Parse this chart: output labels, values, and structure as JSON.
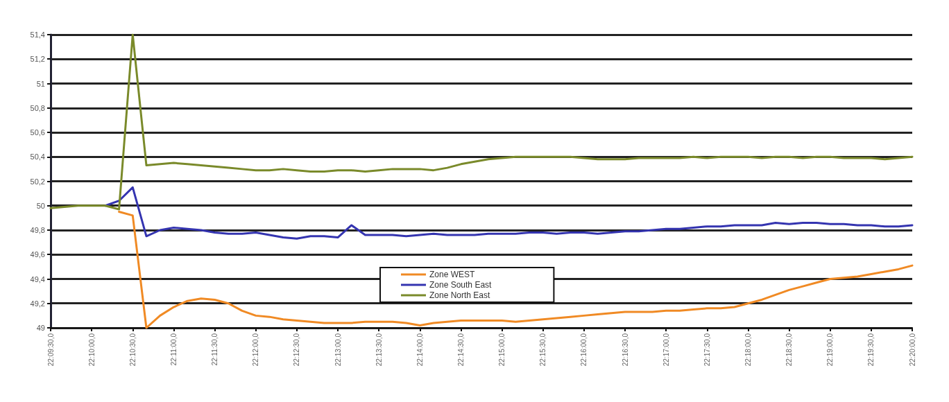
{
  "chart_data": {
    "type": "line",
    "categories": [
      "22:09:30,0",
      null,
      null,
      "22:10:00,0",
      null,
      null,
      "22:10:30,0",
      null,
      null,
      "22:11:00,0",
      null,
      null,
      "22:11:30,0",
      null,
      null,
      "22:12:00,0",
      null,
      null,
      "22:12:30,0",
      null,
      null,
      "22:13:00,0",
      null,
      null,
      "22:13:30,0",
      null,
      null,
      "22:14:00,0",
      null,
      null,
      "22:14:30,0",
      null,
      null,
      "22:15:00,0",
      null,
      null,
      "22:15:30,0",
      null,
      null,
      "22:16:00,0",
      null,
      null,
      "22:16:30,0",
      null,
      null,
      "22:17:00,0",
      null,
      null,
      "22:17:30,0",
      null,
      null,
      "22:18:00,0",
      null,
      null,
      "22:18:30,0",
      null,
      null,
      "22:19:00,0",
      null,
      null,
      "22:19:30,0",
      null,
      null,
      "22:20:00,0"
    ],
    "series": [
      {
        "name": "Zone WEST",
        "color": "#f08a24",
        "values": [
          null,
          null,
          null,
          null,
          null,
          49.95,
          49.92,
          49.0,
          49.1,
          49.17,
          49.22,
          49.24,
          49.23,
          49.2,
          49.14,
          49.1,
          49.09,
          49.07,
          49.06,
          49.05,
          49.04,
          49.04,
          49.04,
          49.05,
          49.05,
          49.05,
          49.04,
          49.02,
          49.04,
          49.05,
          49.06,
          49.06,
          49.06,
          49.06,
          49.05,
          49.06,
          49.07,
          49.08,
          49.09,
          49.1,
          49.11,
          49.12,
          49.13,
          49.13,
          49.13,
          49.14,
          49.14,
          49.15,
          49.16,
          49.16,
          49.17,
          49.2,
          49.23,
          49.27,
          49.31,
          49.34,
          49.37,
          49.4,
          49.41,
          49.42,
          49.44,
          49.46,
          49.48,
          49.51
        ]
      },
      {
        "name": "Zone South East",
        "color": "#3434b0",
        "values": [
          null,
          null,
          null,
          null,
          50.0,
          50.04,
          50.15,
          49.75,
          49.8,
          49.82,
          49.81,
          49.8,
          49.78,
          49.77,
          49.77,
          49.78,
          49.76,
          49.74,
          49.73,
          49.75,
          49.75,
          49.74,
          49.84,
          49.76,
          49.76,
          49.76,
          49.75,
          49.76,
          49.77,
          49.76,
          49.76,
          49.76,
          49.77,
          49.77,
          49.77,
          49.78,
          49.78,
          49.77,
          49.78,
          49.78,
          49.77,
          49.78,
          49.79,
          49.79,
          49.8,
          49.81,
          49.81,
          49.82,
          49.83,
          49.83,
          49.84,
          49.84,
          49.84,
          49.86,
          49.85,
          49.86,
          49.86,
          49.85,
          49.85,
          49.84,
          49.84,
          49.83,
          49.83,
          49.84
        ]
      },
      {
        "name": "Zone North East",
        "color": "#7a8a2a",
        "values": [
          49.98,
          49.99,
          50.0,
          50.0,
          50.0,
          49.97,
          51.4,
          50.33,
          50.34,
          50.35,
          50.34,
          50.33,
          50.32,
          50.31,
          50.3,
          50.29,
          50.29,
          50.3,
          50.29,
          50.28,
          50.28,
          50.29,
          50.29,
          50.28,
          50.29,
          50.3,
          50.3,
          50.3,
          50.29,
          50.31,
          50.34,
          50.36,
          50.38,
          50.39,
          50.4,
          50.4,
          50.4,
          50.4,
          50.4,
          50.39,
          50.38,
          50.38,
          50.38,
          50.39,
          50.39,
          50.39,
          50.39,
          50.4,
          50.39,
          50.4,
          50.4,
          50.4,
          50.39,
          50.4,
          50.4,
          50.39,
          50.4,
          50.4,
          50.39,
          50.39,
          50.39,
          50.38,
          50.39,
          50.4
        ]
      }
    ],
    "ylim": [
      49,
      51.4
    ],
    "yticks": [
      49,
      {
        "value": 49.2,
        "label": "49,2"
      },
      {
        "value": 49.4,
        "label": "49,4"
      },
      {
        "value": 49.6,
        "label": "49,6"
      },
      {
        "value": 49.8,
        "label": "49,8"
      },
      50,
      {
        "value": 50.2,
        "label": "50,2"
      },
      {
        "value": 50.4,
        "label": "50,4"
      },
      {
        "value": 50.6,
        "label": "50,6"
      },
      {
        "value": 50.8,
        "label": "50,8"
      },
      51,
      {
        "value": 51.2,
        "label": "51,2"
      },
      {
        "value": 51.4,
        "label": "51,4"
      }
    ],
    "grid": "y",
    "legend": "bottom",
    "marker": "none",
    "line_style": "solid"
  }
}
